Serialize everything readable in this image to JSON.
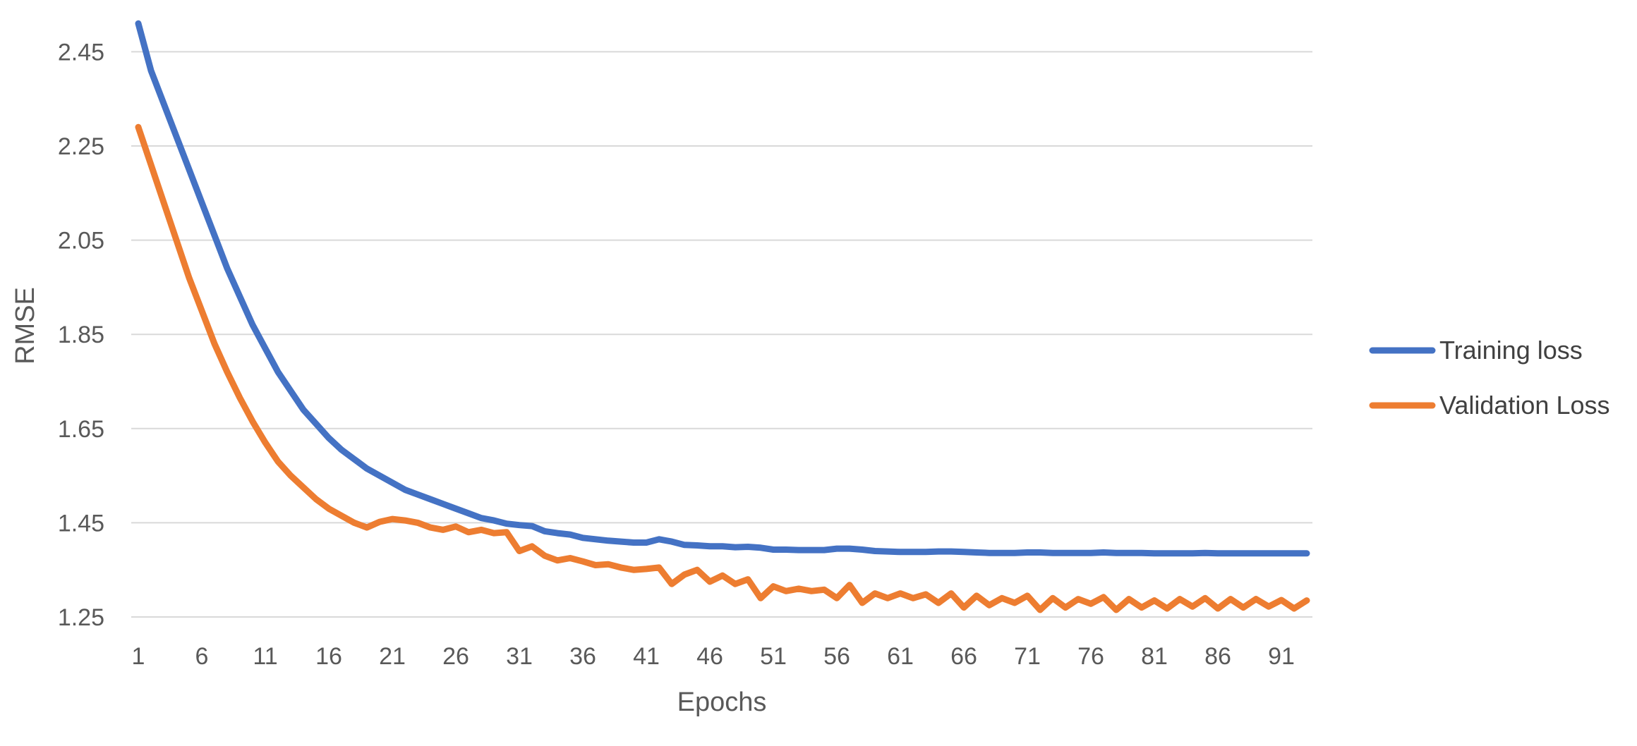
{
  "chart_data": {
    "type": "line",
    "title": "",
    "xlabel": "Epochs",
    "ylabel": "RMSE",
    "xlim": [
      1,
      93
    ],
    "ylim": [
      1.25,
      2.5
    ],
    "yticks": [
      1.25,
      1.45,
      1.65,
      1.85,
      2.05,
      2.25,
      2.45
    ],
    "ytick_labels": [
      "1.25",
      "1.45",
      "1.65",
      "1.85",
      "2.05",
      "2.25",
      "2.45"
    ],
    "xticks": [
      1,
      6,
      11,
      16,
      21,
      26,
      31,
      36,
      41,
      46,
      51,
      56,
      61,
      66,
      71,
      76,
      81,
      86,
      91
    ],
    "xtick_labels": [
      "1",
      "6",
      "11",
      "16",
      "21",
      "26",
      "31",
      "36",
      "41",
      "46",
      "51",
      "56",
      "61",
      "66",
      "71",
      "76",
      "81",
      "86",
      "91"
    ],
    "grid": true,
    "legend_position": "right",
    "series": [
      {
        "name": "Training loss",
        "color": "#4472C4",
        "x": [
          1,
          2,
          3,
          4,
          5,
          6,
          7,
          8,
          9,
          10,
          11,
          12,
          13,
          14,
          15,
          16,
          17,
          18,
          19,
          20,
          21,
          22,
          23,
          24,
          25,
          26,
          27,
          28,
          29,
          30,
          31,
          32,
          33,
          34,
          35,
          36,
          37,
          38,
          39,
          40,
          41,
          42,
          43,
          44,
          45,
          46,
          47,
          48,
          49,
          50,
          51,
          52,
          53,
          54,
          55,
          56,
          57,
          58,
          59,
          60,
          61,
          62,
          63,
          64,
          65,
          66,
          67,
          68,
          69,
          70,
          71,
          72,
          73,
          74,
          75,
          76,
          77,
          78,
          79,
          80,
          81,
          82,
          83,
          84,
          85,
          86,
          87,
          88,
          89,
          90,
          91,
          92,
          93
        ],
        "y": [
          2.51,
          2.41,
          2.34,
          2.27,
          2.2,
          2.13,
          2.06,
          1.99,
          1.93,
          1.87,
          1.82,
          1.77,
          1.73,
          1.69,
          1.66,
          1.63,
          1.605,
          1.585,
          1.565,
          1.55,
          1.535,
          1.52,
          1.51,
          1.5,
          1.49,
          1.48,
          1.47,
          1.46,
          1.455,
          1.448,
          1.445,
          1.443,
          1.432,
          1.428,
          1.425,
          1.418,
          1.415,
          1.412,
          1.41,
          1.408,
          1.408,
          1.415,
          1.41,
          1.403,
          1.402,
          1.4,
          1.4,
          1.398,
          1.399,
          1.397,
          1.393,
          1.393,
          1.392,
          1.392,
          1.392,
          1.395,
          1.395,
          1.393,
          1.39,
          1.389,
          1.388,
          1.388,
          1.388,
          1.389,
          1.389,
          1.388,
          1.387,
          1.386,
          1.386,
          1.386,
          1.387,
          1.387,
          1.386,
          1.386,
          1.386,
          1.386,
          1.387,
          1.386,
          1.386,
          1.386,
          1.385,
          1.385,
          1.385,
          1.385,
          1.386,
          1.385,
          1.385,
          1.385,
          1.385,
          1.385,
          1.385,
          1.385,
          1.385
        ]
      },
      {
        "name": "Validation Loss",
        "color": "#ED7D31",
        "x": [
          1,
          2,
          3,
          4,
          5,
          6,
          7,
          8,
          9,
          10,
          11,
          12,
          13,
          14,
          15,
          16,
          17,
          18,
          19,
          20,
          21,
          22,
          23,
          24,
          25,
          26,
          27,
          28,
          29,
          30,
          31,
          32,
          33,
          34,
          35,
          36,
          37,
          38,
          39,
          40,
          41,
          42,
          43,
          44,
          45,
          46,
          47,
          48,
          49,
          50,
          51,
          52,
          53,
          54,
          55,
          56,
          57,
          58,
          59,
          60,
          61,
          62,
          63,
          64,
          65,
          66,
          67,
          68,
          69,
          70,
          71,
          72,
          73,
          74,
          75,
          76,
          77,
          78,
          79,
          80,
          81,
          82,
          83,
          84,
          85,
          86,
          87,
          88,
          89,
          90,
          91,
          92,
          93
        ],
        "y": [
          2.29,
          2.21,
          2.13,
          2.05,
          1.97,
          1.9,
          1.83,
          1.77,
          1.715,
          1.665,
          1.62,
          1.58,
          1.55,
          1.525,
          1.5,
          1.48,
          1.465,
          1.45,
          1.44,
          1.452,
          1.458,
          1.455,
          1.45,
          1.44,
          1.435,
          1.442,
          1.43,
          1.435,
          1.428,
          1.43,
          1.39,
          1.4,
          1.38,
          1.37,
          1.375,
          1.368,
          1.36,
          1.362,
          1.355,
          1.35,
          1.352,
          1.355,
          1.32,
          1.34,
          1.35,
          1.325,
          1.338,
          1.32,
          1.33,
          1.29,
          1.315,
          1.305,
          1.31,
          1.305,
          1.308,
          1.29,
          1.318,
          1.28,
          1.3,
          1.29,
          1.3,
          1.29,
          1.298,
          1.28,
          1.3,
          1.27,
          1.295,
          1.275,
          1.29,
          1.28,
          1.295,
          1.265,
          1.29,
          1.27,
          1.288,
          1.278,
          1.292,
          1.265,
          1.288,
          1.27,
          1.285,
          1.268,
          1.288,
          1.272,
          1.29,
          1.268,
          1.288,
          1.27,
          1.288,
          1.272,
          1.286,
          1.268,
          1.285
        ]
      }
    ]
  }
}
